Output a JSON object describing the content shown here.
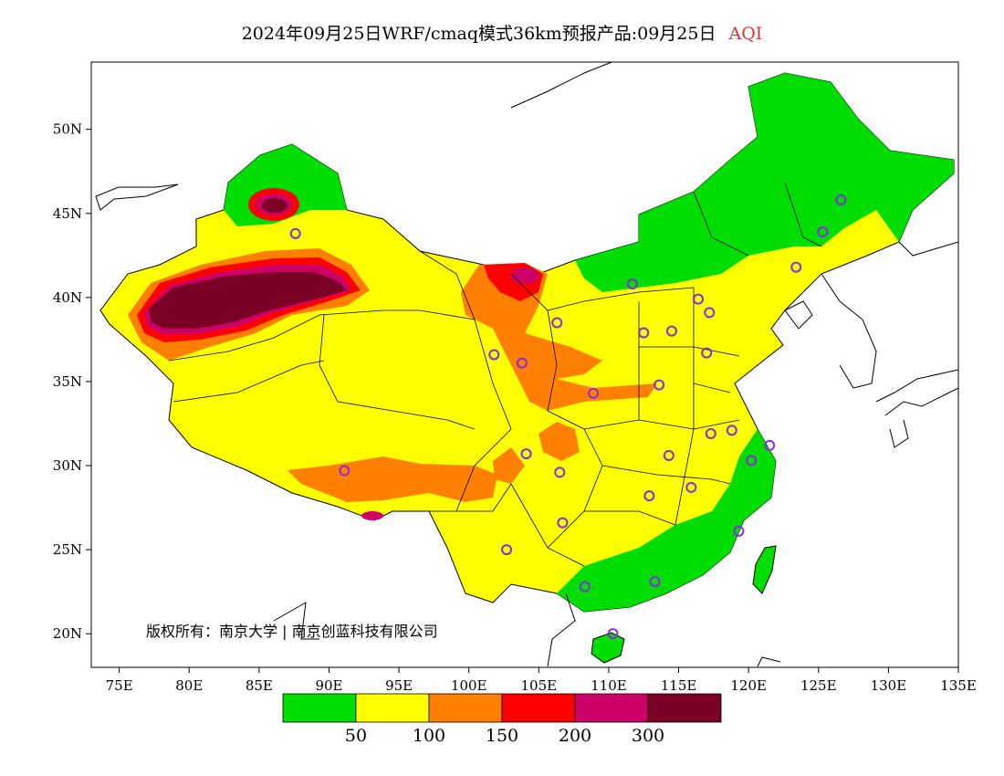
{
  "title": {
    "main": "2024年09月25日WRF/cmaq模式36km预报产品:09月25日",
    "variable": "AQI"
  },
  "map": {
    "lon_range": [
      73,
      135
    ],
    "lat_range": [
      18,
      54
    ],
    "x_ticks": [
      {
        "lon": 75,
        "label": "75E"
      },
      {
        "lon": 80,
        "label": "80E"
      },
      {
        "lon": 85,
        "label": "85E"
      },
      {
        "lon": 90,
        "label": "90E"
      },
      {
        "lon": 95,
        "label": "95E"
      },
      {
        "lon": 100,
        "label": "100E"
      },
      {
        "lon": 105,
        "label": "105E"
      },
      {
        "lon": 110,
        "label": "110E"
      },
      {
        "lon": 115,
        "label": "115E"
      },
      {
        "lon": 120,
        "label": "120E"
      },
      {
        "lon": 125,
        "label": "125E"
      },
      {
        "lon": 130,
        "label": "130E"
      },
      {
        "lon": 135,
        "label": "135E"
      }
    ],
    "y_ticks": [
      {
        "lat": 20,
        "label": "20N"
      },
      {
        "lat": 25,
        "label": "25N"
      },
      {
        "lat": 30,
        "label": "30N"
      },
      {
        "lat": 35,
        "label": "35N"
      },
      {
        "lat": 40,
        "label": "40N"
      },
      {
        "lat": 45,
        "label": "45N"
      },
      {
        "lat": 50,
        "label": "50N"
      }
    ],
    "copyright": "版权所有：南京大学 | 南京创蓝科技有限公司",
    "colors": {
      "good": "#00dd00",
      "moderate": "#ffff00",
      "usg": "#ff8000",
      "unhealthy": "#ff0000",
      "very_unhealthy": "#cc0066",
      "hazardous": "#7a0025",
      "station_ring": "#8a2be2"
    },
    "stations": [
      {
        "lon": 87.6,
        "lat": 43.8
      },
      {
        "lon": 91.1,
        "lat": 29.7
      },
      {
        "lon": 101.8,
        "lat": 36.6
      },
      {
        "lon": 103.8,
        "lat": 36.1
      },
      {
        "lon": 106.3,
        "lat": 38.5
      },
      {
        "lon": 111.7,
        "lat": 40.8
      },
      {
        "lon": 112.5,
        "lat": 37.9
      },
      {
        "lon": 114.5,
        "lat": 38.0
      },
      {
        "lon": 116.4,
        "lat": 39.9
      },
      {
        "lon": 117.2,
        "lat": 39.1
      },
      {
        "lon": 123.4,
        "lat": 41.8
      },
      {
        "lon": 125.3,
        "lat": 43.9
      },
      {
        "lon": 126.6,
        "lat": 45.8
      },
      {
        "lon": 117.0,
        "lat": 36.7
      },
      {
        "lon": 113.6,
        "lat": 34.8
      },
      {
        "lon": 108.9,
        "lat": 34.3
      },
      {
        "lon": 104.1,
        "lat": 30.7
      },
      {
        "lon": 106.5,
        "lat": 29.6
      },
      {
        "lon": 106.7,
        "lat": 26.6
      },
      {
        "lon": 102.7,
        "lat": 25.0
      },
      {
        "lon": 108.3,
        "lat": 22.8
      },
      {
        "lon": 113.3,
        "lat": 23.1
      },
      {
        "lon": 110.3,
        "lat": 20.0
      },
      {
        "lon": 114.3,
        "lat": 30.6
      },
      {
        "lon": 112.9,
        "lat": 28.2
      },
      {
        "lon": 115.9,
        "lat": 28.7
      },
      {
        "lon": 117.3,
        "lat": 31.9
      },
      {
        "lon": 118.8,
        "lat": 32.1
      },
      {
        "lon": 120.2,
        "lat": 30.3
      },
      {
        "lon": 121.5,
        "lat": 31.2
      },
      {
        "lon": 119.3,
        "lat": 26.1
      }
    ]
  },
  "colorbar": {
    "ticks": [
      "50",
      "100",
      "150",
      "200",
      "300"
    ]
  }
}
